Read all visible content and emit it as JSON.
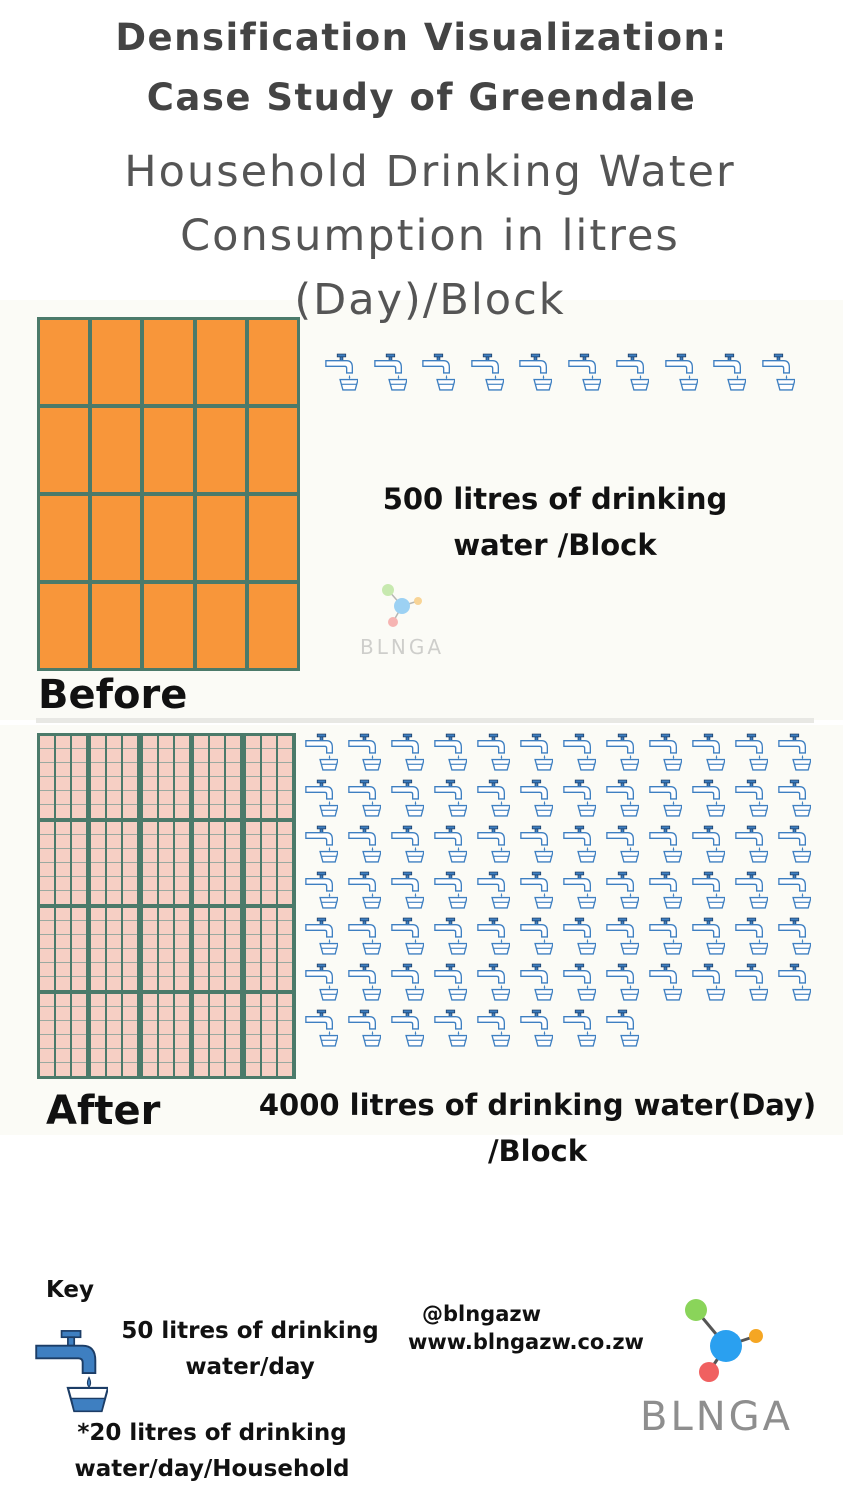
{
  "header": {
    "title_line1": "Densification Visualization:",
    "title_line2": "Case Study of Greendale",
    "subtitle_line1": "Household Drinking Water",
    "subtitle_line2": "Consumption in litres",
    "subtitle_line3": "(Day)/Block"
  },
  "before": {
    "label": "Before",
    "text_line1": "500 litres of drinking",
    "text_line2": "water /Block",
    "tap_count": 10
  },
  "after": {
    "label": "After",
    "text_line1": "4000 litres of drinking water(Day)",
    "text_line2": "/Block",
    "tap_count": 80
  },
  "key": {
    "title": "Key",
    "tap_line1": "50 litres of drinking",
    "tap_line2": "water/day",
    "household_line1": "*20 litres  of drinking",
    "household_line2": "water/day/Household"
  },
  "contact": {
    "handle": "@blngazw",
    "website": "www.blngazw.co.zw"
  },
  "logo": {
    "name": "BLNGA"
  },
  "colors": {
    "orange_block": "#f8963a",
    "grid_green": "#4b7a6a",
    "pink_unit": "#f6cfc4",
    "tap_blue": "#3e7fc1"
  }
}
